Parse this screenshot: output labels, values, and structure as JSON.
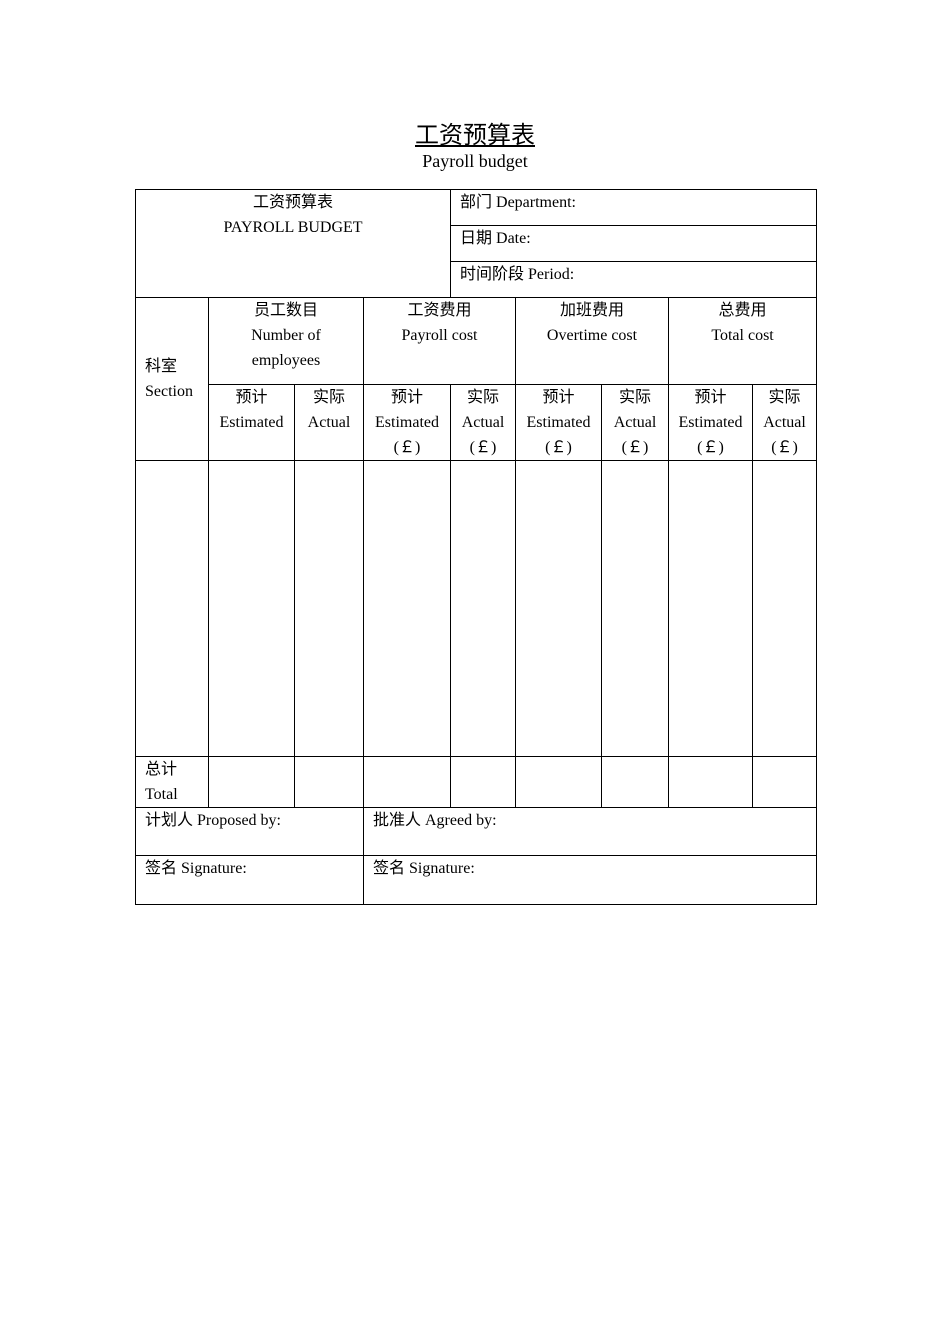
{
  "title": "工资预算表",
  "subtitle": "Payroll budget",
  "header": {
    "form_cn": "工资预算表",
    "form_en": "PAYROLL BUDGET",
    "department": "部门 Department:",
    "date": "日期 Date:",
    "period": "时间阶段 Period:"
  },
  "columns": {
    "section_cn": "科室",
    "section_en": "Section",
    "groups": [
      {
        "cn": "员工数目",
        "en1": "Number of",
        "en2": "employees"
      },
      {
        "cn": "工资费用",
        "en1": "Payroll cost",
        "en2": ""
      },
      {
        "cn": "加班费用",
        "en1": "Overtime cost",
        "en2": ""
      },
      {
        "cn": "总费用",
        "en1": "Total cost",
        "en2": ""
      }
    ],
    "sub": [
      {
        "cn": "预计",
        "en": "Estimated",
        "unit": ""
      },
      {
        "cn": "实际",
        "en": "Actual",
        "unit": ""
      },
      {
        "cn": "预计",
        "en": "Estimated",
        "unit": "(￡)"
      },
      {
        "cn": "实际",
        "en": "Actual",
        "unit": "(￡)"
      },
      {
        "cn": "预计",
        "en": "Estimated",
        "unit": "(￡)"
      },
      {
        "cn": "实际",
        "en": "Actual",
        "unit": "(￡)"
      },
      {
        "cn": "预计",
        "en": "Estimated",
        "unit": "(￡)"
      },
      {
        "cn": "实际",
        "en": "Actual",
        "unit": "(￡)"
      }
    ]
  },
  "total": {
    "cn": "总计",
    "en": "Total"
  },
  "footer": {
    "proposed": "计划人 Proposed by:",
    "agreed": "批准人 Agreed by:",
    "signature_left": "签名 Signature:",
    "signature_right": "签名 Signature:"
  }
}
